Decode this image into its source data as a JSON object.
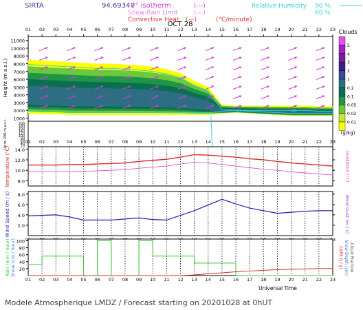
{
  "header": {
    "station": "SIRTA",
    "coords": "94.69347",
    "legend_isotherm": "0° isotherm",
    "legend_snow_rain": "Snow-Rain Limit",
    "legend_convective": "Convective Heat",
    "legend_convective_units": "(°C/minute)",
    "legend_rh": "Relative Humidity",
    "rh_90": "90 %",
    "rh_60": "60 %",
    "dashes_a": "(---)",
    "dashes_b": "(---)",
    "dashes_c": "(—)"
  },
  "hours": [
    "01",
    "02",
    "03",
    "04",
    "05",
    "06",
    "07",
    "08",
    "09",
    "10",
    "11",
    "12",
    "13",
    "14",
    "15",
    "16",
    "17",
    "18",
    "19",
    "20",
    "21",
    "22",
    "23"
  ],
  "date_label": "OCT 28",
  "axes": {
    "height_label": "Height (m a.s.l.)",
    "height_sub_label": "Up to 200 m a.s.l.",
    "temp_label": "Temperature (°C)",
    "humidex_label": "HUMIDEX (°C)",
    "wind_label": "Wind Speed (m / s)",
    "gust_label": "Wind Gust (m / s)",
    "rain_label": "Rain (mm / hour)",
    "snow_label": "Snow (cm / hour)",
    "cape_label": "CAPE (J / g)",
    "snowdepth_label": "Snow Depth (cm)",
    "cloudfrac_label": "Cloud Fraction",
    "universal_time": "Universal Time"
  },
  "clouds_legend": {
    "title": "Clouds",
    "units": "(g/kg)",
    "levels": [
      "0.01",
      "0.02",
      "0.05",
      "0.1",
      "0.2",
      "1",
      "2",
      "3",
      "4",
      "5"
    ],
    "colors": [
      "#ffff00",
      "#c8e628",
      "#6cc83c",
      "#1e9646",
      "#0a6e50",
      "#2e6e82",
      "#3a4aa0",
      "#3a1e8c",
      "#781e96",
      "#a81ec8",
      "#e650f0"
    ]
  },
  "footer": "Modele Atmospherique LMDZ / Forecast starting on 20201028 at 0hUT",
  "chart_data": [
    {
      "type": "heatmap",
      "title": "",
      "y_ticks": [
        "11000",
        "10000",
        "9000",
        "8000",
        "7000",
        "6000",
        "5000",
        "4000",
        "3000",
        "2000",
        "1000"
      ],
      "y_sub_ticks": [
        "200",
        "180",
        "160",
        "140",
        "120",
        "100",
        "80",
        "60",
        "40",
        "20"
      ],
      "series": [
        {
          "name": "cloud_top_m",
          "values": [
            8500,
            8400,
            8300,
            8200,
            8100,
            8000,
            8000,
            7900,
            7800,
            7600,
            7300,
            6800,
            5800,
            5000,
            2700,
            2600,
            2600,
            2600,
            2600,
            2600,
            2600,
            2500,
            2500
          ]
        },
        {
          "name": "cloud_base_m",
          "values": [
            1600,
            1500,
            1500,
            1400,
            1400,
            1400,
            1400,
            1400,
            1400,
            1400,
            1400,
            1400,
            1400,
            1400,
            1600,
            1700,
            1600,
            1500,
            1400,
            1300,
            1300,
            1300,
            1300
          ]
        }
      ],
      "rh_labels": [
        "90",
        "60",
        "90",
        "60",
        "90"
      ]
    },
    {
      "type": "line",
      "x": [
        "01",
        "02",
        "03",
        "04",
        "05",
        "06",
        "07",
        "08",
        "09",
        "10",
        "11",
        "12",
        "13",
        "14",
        "15",
        "16",
        "17",
        "18",
        "19",
        "20",
        "21",
        "22",
        "23"
      ],
      "y_ticks": [
        "14.0",
        "12.0",
        "10.0",
        "8.0"
      ],
      "ylim": [
        7.0,
        14.5
      ],
      "series": [
        {
          "name": "Temperature",
          "values": [
            11.0,
            11.0,
            11.0,
            11.1,
            11.1,
            11.2,
            11.3,
            11.4,
            11.7,
            11.9,
            12.1,
            12.5,
            13.0,
            12.9,
            12.7,
            12.5,
            12.2,
            12.0,
            11.7,
            11.4,
            11.2,
            11.0,
            10.8
          ]
        },
        {
          "name": "HUMIDEX",
          "values": [
            9.7,
            9.7,
            9.7,
            9.7,
            9.8,
            9.9,
            10.0,
            10.1,
            10.4,
            10.6,
            10.8,
            11.2,
            11.5,
            11.4,
            11.1,
            10.8,
            10.5,
            10.2,
            10.0,
            9.7,
            9.5,
            9.3,
            9.1
          ]
        }
      ]
    },
    {
      "type": "line",
      "x": [
        "01",
        "02",
        "03",
        "04",
        "05",
        "06",
        "07",
        "08",
        "09",
        "10",
        "11",
        "12",
        "13",
        "14",
        "15",
        "16",
        "17",
        "18",
        "19",
        "20",
        "21",
        "22",
        "23"
      ],
      "y_ticks": [
        "8.0",
        "6.0",
        "4.0",
        "2.0"
      ],
      "ylim": [
        0,
        8.5
      ],
      "series": [
        {
          "name": "Wind Speed",
          "values": [
            3.8,
            3.9,
            4.0,
            3.6,
            3.0,
            3.0,
            3.0,
            3.2,
            3.4,
            3.1,
            3.0,
            3.9,
            4.8,
            5.9,
            7.0,
            6.1,
            5.3,
            4.8,
            4.3,
            4.5,
            4.7,
            4.8,
            4.8
          ]
        }
      ]
    },
    {
      "type": "line",
      "x": [
        "01",
        "02",
        "03",
        "04",
        "05",
        "06",
        "07",
        "08",
        "09",
        "10",
        "11",
        "12",
        "13",
        "14",
        "15",
        "16",
        "17",
        "18",
        "19",
        "20",
        "21",
        "22",
        "23"
      ],
      "y_ticks": [
        "100",
        "80",
        "60",
        "40",
        "20"
      ],
      "ylim": [
        0,
        105
      ],
      "series": [
        {
          "name": "Rain",
          "values": [
            32,
            56,
            56,
            56,
            0,
            100,
            0,
            0,
            100,
            56,
            56,
            56,
            36,
            36,
            36,
            0,
            0,
            0,
            0,
            0,
            0,
            0,
            0
          ]
        },
        {
          "name": "CAPE",
          "values": [
            0,
            0,
            0,
            0,
            0,
            0,
            0,
            0,
            0,
            0,
            0,
            0,
            2,
            5,
            8,
            11,
            13,
            15,
            17,
            18,
            19,
            20,
            20
          ]
        }
      ]
    }
  ]
}
